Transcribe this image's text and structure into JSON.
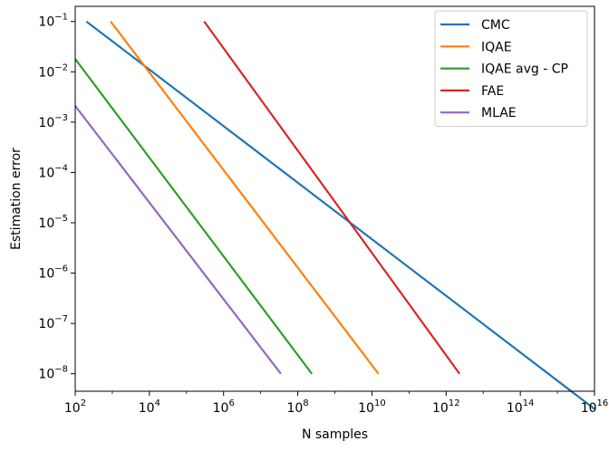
{
  "chart_data": {
    "type": "line",
    "title": "",
    "xlabel": "N samples",
    "ylabel": "Estimation error",
    "x_scale": "log",
    "y_scale": "log",
    "xlim": [
      100,
      10000000000000000
    ],
    "ylim": [
      4.5e-09,
      0.2
    ],
    "grid": false,
    "legend_position": "top-right",
    "x_ticks": [
      {
        "value": 100,
        "base": "10",
        "exp": "2"
      },
      {
        "value": 10000,
        "base": "10",
        "exp": "4"
      },
      {
        "value": 1000000,
        "base": "10",
        "exp": "6"
      },
      {
        "value": 100000000,
        "base": "10",
        "exp": "8"
      },
      {
        "value": 10000000000,
        "base": "10",
        "exp": "10"
      },
      {
        "value": 1000000000000,
        "base": "10",
        "exp": "12"
      },
      {
        "value": 100000000000000,
        "base": "10",
        "exp": "14"
      },
      {
        "value": 10000000000000000,
        "base": "10",
        "exp": "16"
      }
    ],
    "y_ticks": [
      {
        "value": 0.1,
        "base": "10",
        "exp": "−1"
      },
      {
        "value": 0.01,
        "base": "10",
        "exp": "−2"
      },
      {
        "value": 0.001,
        "base": "10",
        "exp": "−3"
      },
      {
        "value": 0.0001,
        "base": "10",
        "exp": "−4"
      },
      {
        "value": 1e-05,
        "base": "10",
        "exp": "−5"
      },
      {
        "value": 1e-06,
        "base": "10",
        "exp": "−6"
      },
      {
        "value": 1e-07,
        "base": "10",
        "exp": "−7"
      },
      {
        "value": 1e-08,
        "base": "10",
        "exp": "−8"
      }
    ],
    "series": [
      {
        "name": "CMC",
        "color": "#1f77b4",
        "x": [
          200,
          10000000000000000
        ],
        "y": [
          0.1,
          2e-09
        ]
      },
      {
        "name": "IQAE",
        "color": "#ff7f0e",
        "x": [
          900,
          15000000000
        ],
        "y": [
          0.1,
          1e-08
        ]
      },
      {
        "name": "IQAE avg - CP",
        "color": "#2ca02c",
        "x": [
          100,
          240000000
        ],
        "y": [
          0.018,
          1e-08
        ]
      },
      {
        "name": "FAE",
        "color": "#d62728",
        "x": [
          300000,
          2300000000000
        ],
        "y": [
          0.1,
          1e-08
        ]
      },
      {
        "name": "MLAE",
        "color": "#9467bd",
        "x": [
          100,
          35000000
        ],
        "y": [
          0.0021,
          1e-08
        ]
      }
    ]
  }
}
